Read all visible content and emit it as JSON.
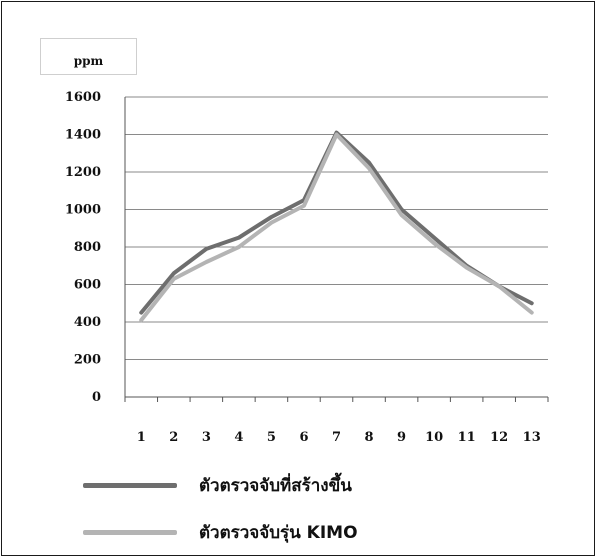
{
  "unit_label": "ppm",
  "legend": [
    {
      "label": "ตัวตรวจจับที่สร้างขึ้น",
      "color": "#6e6e6e"
    },
    {
      "label": "ตัวตรวจจับรุ่น KIMO",
      "color": "#b4b4b4"
    }
  ],
  "chart_data": {
    "type": "line",
    "title": "",
    "xlabel": "",
    "ylabel": "ppm",
    "categories": [
      "1",
      "2",
      "3",
      "4",
      "5",
      "6",
      "7",
      "8",
      "9",
      "10",
      "11",
      "12",
      "13"
    ],
    "ylim": [
      0,
      1600
    ],
    "yticks": [
      0,
      200,
      400,
      600,
      800,
      1000,
      1200,
      1400,
      1600
    ],
    "grid": true,
    "legend_position": "bottom",
    "series": [
      {
        "name": "ตัวตรวจจับที่สร้างขึ้น",
        "color": "#6e6e6e",
        "values": [
          450,
          660,
          790,
          850,
          960,
          1050,
          1410,
          1250,
          1000,
          850,
          700,
          590,
          500
        ]
      },
      {
        "name": "ตัวตรวจจับรุ่น KIMO",
        "color": "#b4b4b4",
        "values": [
          410,
          630,
          720,
          800,
          930,
          1020,
          1400,
          1220,
          970,
          820,
          690,
          590,
          450
        ]
      }
    ]
  }
}
